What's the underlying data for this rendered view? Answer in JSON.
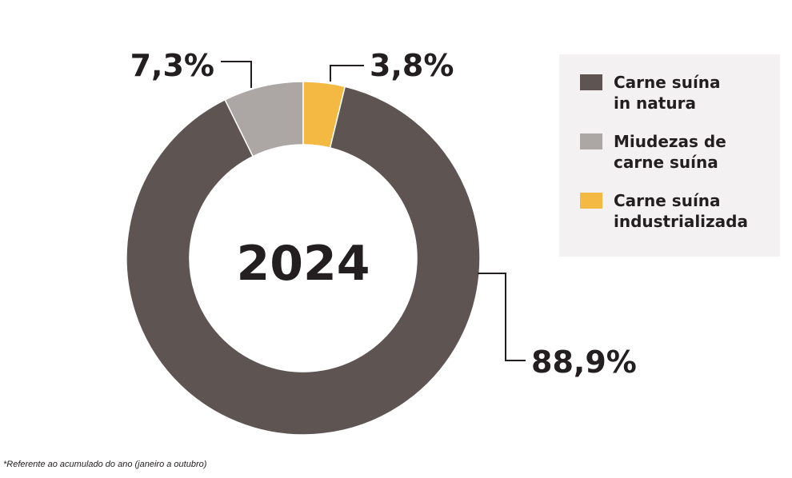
{
  "chart_data": {
    "type": "pie",
    "center_label": "2024",
    "categories": [
      "Carne suína in natura",
      "Miudezas de carne suína",
      "Carne suína industrializada"
    ],
    "values": [
      88.9,
      7.3,
      3.8
    ],
    "value_labels": [
      "88,9%",
      "7,3%",
      "3,8%"
    ],
    "colors": [
      "#5e5552",
      "#aca6a4",
      "#f4b942"
    ],
    "legend": {
      "position": "right",
      "entries": [
        {
          "label": "Carne suína\nin natura",
          "color": "#5e5552"
        },
        {
          "label": "Miudezas de\ncarne suína",
          "color": "#aca6a4"
        },
        {
          "label": "Carne suína\nindustrializada",
          "color": "#f4b942"
        }
      ]
    }
  },
  "footnote": "*Referente ao acumulado do ano (janeiro a outubro)"
}
